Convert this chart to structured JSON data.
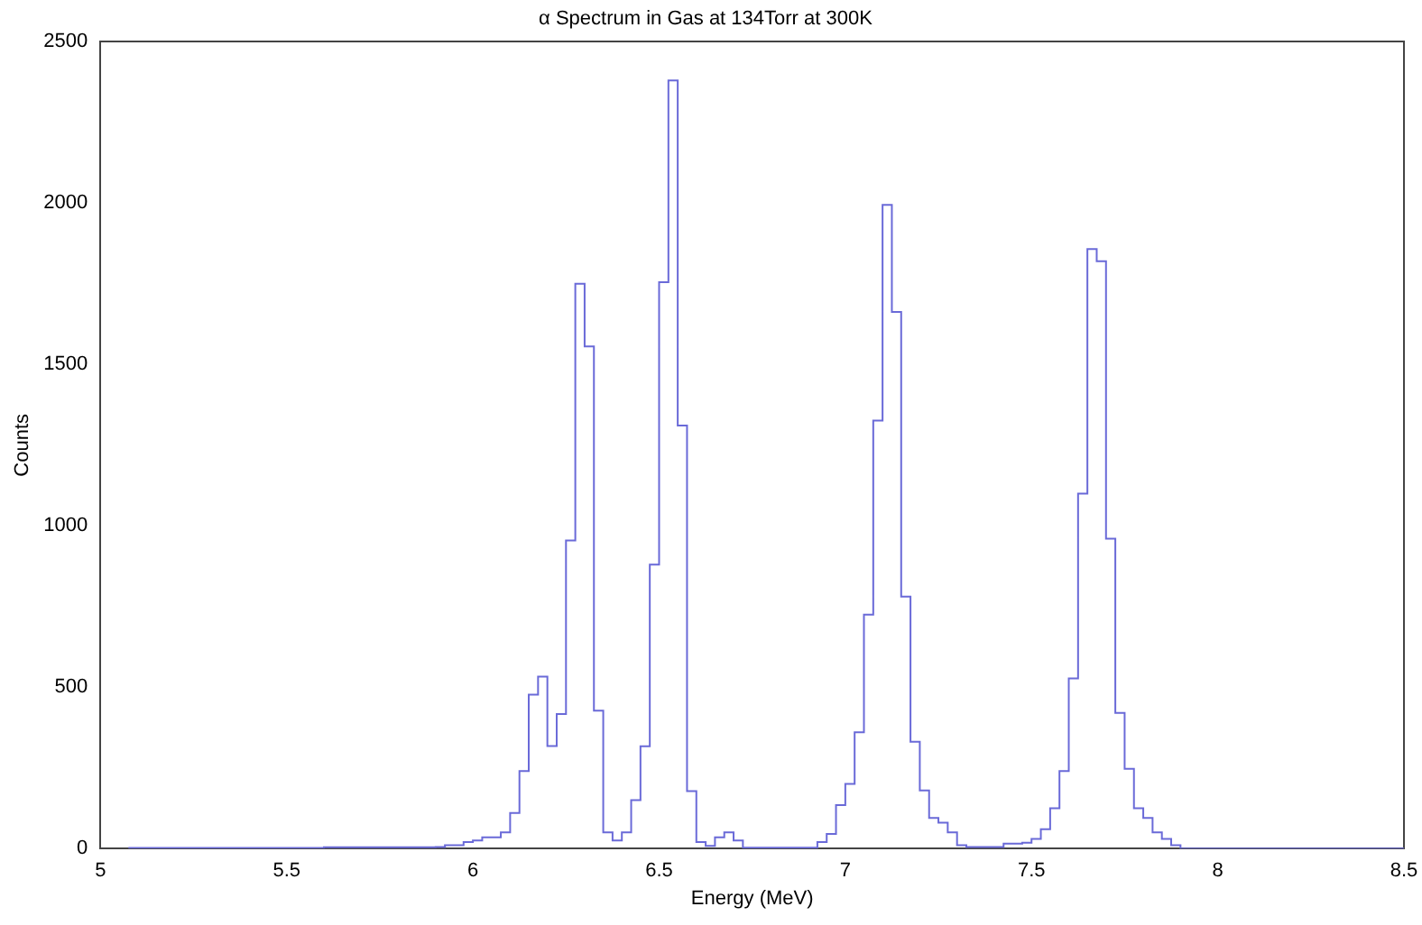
{
  "chart_data": {
    "type": "histogram",
    "title": "α Spectrum in Gas at 134Torr at 300K",
    "xlabel": "Energy (MeV)",
    "ylabel": "Counts",
    "color": "#6a6ad8",
    "bins": [
      5.075,
      5.1,
      5.125,
      5.15,
      5.175,
      5.2,
      5.225,
      5.25,
      5.275,
      5.3,
      5.325,
      5.35,
      5.375,
      5.4,
      5.425,
      5.45,
      5.475,
      5.5,
      5.525,
      5.55,
      5.575,
      5.6,
      5.625,
      5.65,
      5.675,
      5.7,
      5.725,
      5.75,
      5.775,
      5.8,
      5.825,
      5.85,
      5.875,
      5.9,
      5.925,
      5.95,
      5.975,
      6.0,
      6.025,
      6.05,
      6.075,
      6.1,
      6.125,
      6.15,
      6.175,
      6.2,
      6.225,
      6.25,
      6.275,
      6.3,
      6.325,
      6.35,
      6.375,
      6.4,
      6.425,
      6.45,
      6.475,
      6.5,
      6.525,
      6.55,
      6.575,
      6.6,
      6.625,
      6.65,
      6.675,
      6.7,
      6.725,
      6.75,
      6.775,
      6.8,
      6.825,
      6.85,
      6.875,
      6.9,
      6.925,
      6.95,
      6.975,
      7.0,
      7.025,
      7.05,
      7.075,
      7.1,
      7.125,
      7.15,
      7.175,
      7.2,
      7.225,
      7.25,
      7.275,
      7.3,
      7.325,
      7.35,
      7.375,
      7.4,
      7.425,
      7.45,
      7.475,
      7.5,
      7.525,
      7.55,
      7.575,
      7.6,
      7.625,
      7.65,
      7.675,
      7.7,
      7.725,
      7.75,
      7.775,
      7.8,
      7.825,
      7.85,
      7.875,
      7.9,
      7.925,
      7.95,
      7.975,
      8.0,
      8.025,
      8.05,
      8.075,
      8.1,
      8.125,
      8.15,
      8.175,
      8.2,
      8.225,
      8.25,
      8.275,
      8.3,
      8.325,
      8.35,
      8.375,
      8.4,
      8.425,
      8.45,
      8.475,
      8.5
    ],
    "values": [
      2,
      2,
      2,
      2,
      2,
      2,
      2,
      2,
      2,
      2,
      2,
      2,
      2,
      2,
      2,
      2,
      2,
      2,
      2,
      2,
      2,
      4,
      4,
      4,
      4,
      4,
      4,
      4,
      4,
      4,
      4,
      4,
      4,
      5,
      10,
      10,
      20,
      25,
      35,
      35,
      50,
      110,
      240,
      477,
      533,
      318,
      417,
      955,
      1750,
      1556,
      427,
      50,
      25,
      50,
      150,
      317,
      880,
      1755,
      2380,
      1311,
      178,
      20,
      8,
      35,
      50,
      25,
      3,
      3,
      3,
      3,
      3,
      3,
      3,
      3,
      20,
      45,
      135,
      200,
      360,
      725,
      1326,
      1995,
      1663,
      781,
      331,
      180,
      95,
      80,
      50,
      10,
      5,
      5,
      5,
      5,
      15,
      15,
      18,
      30,
      60,
      125,
      240,
      527,
      1100,
      1858,
      1820,
      960,
      420,
      247,
      125,
      95,
      50,
      30,
      10,
      0,
      0,
      0,
      0,
      0,
      0,
      0,
      0,
      0,
      0,
      0,
      0,
      0,
      0,
      0,
      0,
      0,
      0,
      0,
      0,
      0,
      0,
      0,
      0
    ],
    "xlim": [
      5,
      8.5
    ],
    "xticks": [
      5,
      5.5,
      6,
      6.5,
      7,
      7.5,
      8,
      8.5
    ],
    "ylim": [
      0,
      2500
    ],
    "yticks": [
      0,
      500,
      1000,
      1500,
      2000,
      2500
    ]
  }
}
